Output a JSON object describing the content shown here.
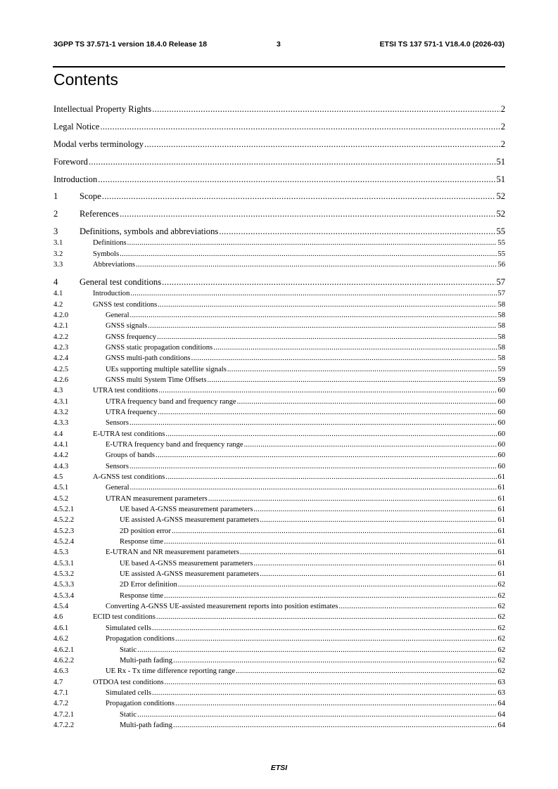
{
  "header": {
    "left": "3GPP TS 37.571-1 version 18.4.0 Release 18",
    "page": "3",
    "right": "ETSI TS 137 571-1 V18.4.0 (2026-03)"
  },
  "title": "Contents",
  "toc": [
    {
      "num": "",
      "title": "Intellectual Property Rights",
      "page": "2",
      "level": 0
    },
    {
      "num": "",
      "title": "Legal Notice",
      "page": "2",
      "level": 0
    },
    {
      "num": "",
      "title": "Modal verbs terminology",
      "page": "2",
      "level": 0
    },
    {
      "num": "",
      "title": "Foreword",
      "page": "51",
      "level": 0
    },
    {
      "num": "",
      "title": "Introduction",
      "page": "51",
      "level": 0
    },
    {
      "num": "1",
      "title": "Scope",
      "page": "52",
      "level": 1
    },
    {
      "num": "2",
      "title": "References",
      "page": "52",
      "level": 1
    },
    {
      "num": "3",
      "title": "Definitions, symbols and abbreviations",
      "page": "55",
      "level": 1
    },
    {
      "num": "3.1",
      "title": "Definitions",
      "page": "55",
      "level": 2
    },
    {
      "num": "3.2",
      "title": "Symbols",
      "page": "55",
      "level": 2
    },
    {
      "num": "3.3",
      "title": "Abbreviations",
      "page": "56",
      "level": 2
    },
    {
      "num": "4",
      "title": "General test conditions",
      "page": "57",
      "level": 1
    },
    {
      "num": "4.1",
      "title": "Introduction",
      "page": "57",
      "level": 2
    },
    {
      "num": "4.2",
      "title": "GNSS test conditions",
      "page": "58",
      "level": 2
    },
    {
      "num": "4.2.0",
      "title": "General",
      "page": "58",
      "level": 3
    },
    {
      "num": "4.2.1",
      "title": "GNSS signals",
      "page": "58",
      "level": 3
    },
    {
      "num": "4.2.2",
      "title": "GNSS frequency",
      "page": "58",
      "level": 3
    },
    {
      "num": "4.2.3",
      "title": "GNSS static propagation conditions",
      "page": "58",
      "level": 3
    },
    {
      "num": "4.2.4",
      "title": "GNSS multi-path conditions",
      "page": "58",
      "level": 3
    },
    {
      "num": "4.2.5",
      "title": "UEs supporting multiple satellite signals",
      "page": "59",
      "level": 3
    },
    {
      "num": "4.2.6",
      "title": "GNSS multi System Time Offsets",
      "page": "59",
      "level": 3
    },
    {
      "num": "4.3",
      "title": "UTRA test conditions",
      "page": "60",
      "level": 2
    },
    {
      "num": "4.3.1",
      "title": "UTRA frequency band and frequency range",
      "page": "60",
      "level": 3
    },
    {
      "num": "4.3.2",
      "title": "UTRA frequency",
      "page": "60",
      "level": 3
    },
    {
      "num": "4.3.3",
      "title": "Sensors",
      "page": "60",
      "level": 3
    },
    {
      "num": "4.4",
      "title": "E-UTRA test conditions",
      "page": "60",
      "level": 2
    },
    {
      "num": "4.4.1",
      "title": "E-UTRA frequency band and frequency range",
      "page": "60",
      "level": 3
    },
    {
      "num": "4.4.2",
      "title": "Groups of bands",
      "page": "60",
      "level": 3
    },
    {
      "num": "4.4.3",
      "title": "Sensors",
      "page": "60",
      "level": 3
    },
    {
      "num": "4.5",
      "title": "A-GNSS test conditions",
      "page": "61",
      "level": 2
    },
    {
      "num": "4.5.1",
      "title": "General",
      "page": "61",
      "level": 3
    },
    {
      "num": "4.5.2",
      "title": "UTRAN measurement parameters",
      "page": "61",
      "level": 3
    },
    {
      "num": "4.5.2.1",
      "title": "UE based A-GNSS measurement parameters",
      "page": "61",
      "level": 4
    },
    {
      "num": "4.5.2.2",
      "title": "UE assisted A-GNSS measurement parameters",
      "page": "61",
      "level": 4
    },
    {
      "num": "4.5.2.3",
      "title": "2D position error",
      "page": "61",
      "level": 4
    },
    {
      "num": "4.5.2.4",
      "title": "Response time",
      "page": "61",
      "level": 4
    },
    {
      "num": "4.5.3",
      "title": "E-UTRAN and NR measurement parameters",
      "page": "61",
      "level": 3
    },
    {
      "num": "4.5.3.1",
      "title": "UE based A-GNSS measurement parameters",
      "page": "61",
      "level": 4
    },
    {
      "num": "4.5.3.2",
      "title": "UE assisted A-GNSS measurement parameters",
      "page": "61",
      "level": 4
    },
    {
      "num": "4.5.3.3",
      "title": "2D Error definition",
      "page": "62",
      "level": 4
    },
    {
      "num": "4.5.3.4",
      "title": "Response time",
      "page": "62",
      "level": 4
    },
    {
      "num": "4.5.4",
      "title": "Converting A-GNSS UE-assisted measurement reports into position estimates",
      "page": "62",
      "level": 3
    },
    {
      "num": "4.6",
      "title": "ECID test conditions",
      "page": "62",
      "level": 2
    },
    {
      "num": "4.6.1",
      "title": "Simulated cells",
      "page": "62",
      "level": 3
    },
    {
      "num": "4.6.2",
      "title": "Propagation conditions",
      "page": "62",
      "level": 3
    },
    {
      "num": "4.6.2.1",
      "title": "Static",
      "page": "62",
      "level": 4
    },
    {
      "num": "4.6.2.2",
      "title": "Multi-path fading",
      "page": "62",
      "level": 4
    },
    {
      "num": "4.6.3",
      "title": "UE Rx - Tx time difference reporting range",
      "page": "62",
      "level": 3
    },
    {
      "num": "4.7",
      "title": "OTDOA test conditions",
      "page": "63",
      "level": 2
    },
    {
      "num": "4.7.1",
      "title": "Simulated cells",
      "page": "63",
      "level": 3
    },
    {
      "num": "4.7.2",
      "title": "Propagation conditions",
      "page": "64",
      "level": 3
    },
    {
      "num": "4.7.2.1",
      "title": "Static",
      "page": "64",
      "level": 4
    },
    {
      "num": "4.7.2.2",
      "title": "Multi-path fading",
      "page": "64",
      "level": 4
    }
  ],
  "footer": "ETSI"
}
